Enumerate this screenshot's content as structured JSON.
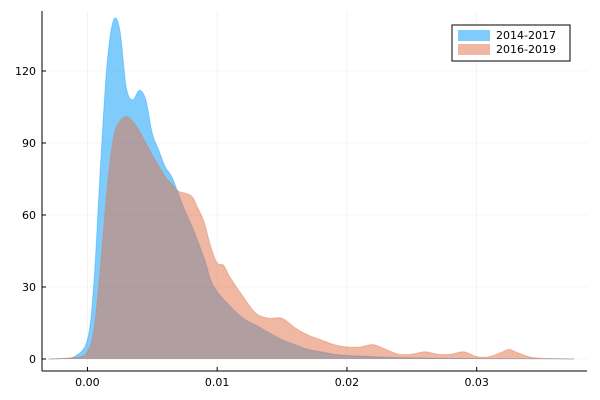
{
  "chart_data": {
    "type": "area",
    "title": "",
    "xlabel": "",
    "ylabel": "",
    "xlim": [
      -0.0035,
      0.0385
    ],
    "ylim": [
      -5,
      145
    ],
    "xticks": [
      0.0,
      0.01,
      0.02,
      0.03
    ],
    "xtick_labels": [
      "0.00",
      "0.01",
      "0.02",
      "0.03"
    ],
    "yticks": [
      0,
      30,
      60,
      90,
      120
    ],
    "ytick_labels": [
      "0",
      "30",
      "60",
      "90",
      "120"
    ],
    "grid": true,
    "legend_position": "top-right",
    "series": [
      {
        "name": "2014-2017",
        "color": "#009AFA",
        "opacity": 0.5,
        "x": [
          -0.003,
          -0.002,
          -0.001,
          0.0,
          0.0005,
          0.001,
          0.0015,
          0.002,
          0.0025,
          0.003,
          0.0035,
          0.004,
          0.0045,
          0.005,
          0.0055,
          0.006,
          0.0065,
          0.007,
          0.0075,
          0.008,
          0.009,
          0.0095,
          0.01,
          0.011,
          0.012,
          0.013,
          0.014,
          0.015,
          0.016,
          0.017,
          0.018,
          0.019,
          0.02,
          0.022,
          0.024,
          0.026,
          0.028,
          0.03,
          0.032,
          0.035,
          0.0375
        ],
        "values": [
          0,
          0.2,
          1,
          8,
          32,
          80,
          122,
          141,
          137,
          113,
          108,
          112,
          108,
          94,
          87,
          80,
          76,
          69,
          62,
          56,
          42,
          33,
          28,
          22,
          17,
          14,
          11,
          8,
          6,
          4,
          3,
          2,
          1.5,
          1,
          0.6,
          0.4,
          0.3,
          0.2,
          0.15,
          0.1,
          0
        ]
      },
      {
        "name": "2016-2019",
        "color": "#E26F46",
        "opacity": 0.5,
        "x": [
          -0.003,
          -0.002,
          -0.001,
          -0.0005,
          0.0,
          0.0005,
          0.001,
          0.0015,
          0.002,
          0.0025,
          0.003,
          0.0035,
          0.004,
          0.005,
          0.006,
          0.0065,
          0.007,
          0.008,
          0.0085,
          0.009,
          0.0095,
          0.01,
          0.0105,
          0.011,
          0.012,
          0.013,
          0.014,
          0.015,
          0.016,
          0.017,
          0.018,
          0.019,
          0.02,
          0.021,
          0.022,
          0.023,
          0.024,
          0.025,
          0.026,
          0.027,
          0.028,
          0.029,
          0.03,
          0.031,
          0.032,
          0.0325,
          0.033,
          0.034,
          0.035,
          0.0375
        ],
        "values": [
          0,
          0.2,
          0.6,
          1,
          3,
          12,
          38,
          70,
          92,
          99,
          101,
          99,
          95,
          85,
          76,
          73,
          70,
          68,
          63,
          57,
          47,
          40,
          39,
          34,
          26,
          19,
          17,
          17,
          13,
          10,
          8,
          6,
          5,
          5,
          6,
          4,
          2,
          2,
          3,
          2,
          2,
          3,
          1,
          1,
          3,
          4,
          3,
          1,
          0.3,
          0
        ]
      }
    ]
  }
}
